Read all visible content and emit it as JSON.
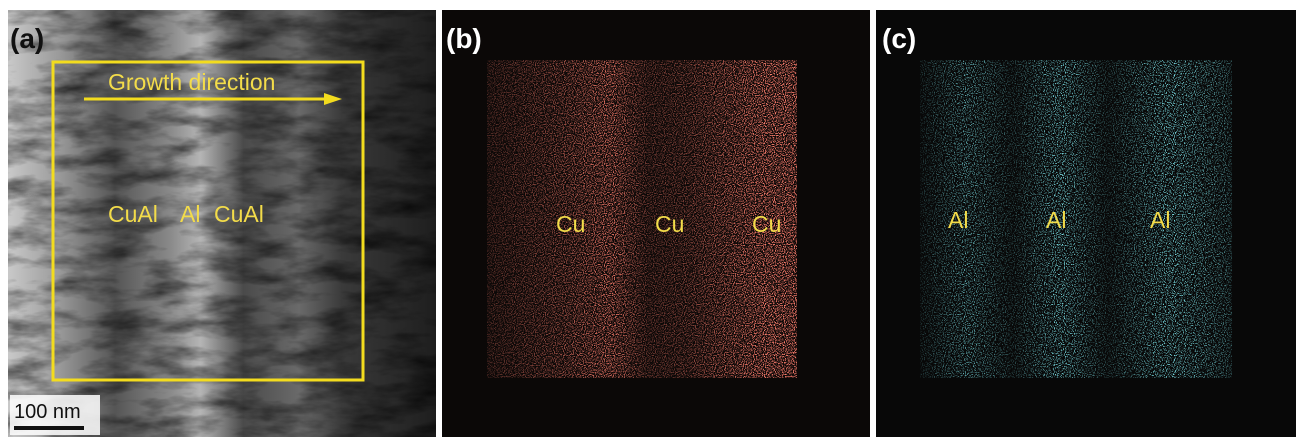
{
  "panels": [
    {
      "label": "(a)",
      "arrow_label": "Growth direction",
      "phases": [
        "CuAl",
        "Al",
        "CuAl"
      ],
      "scale_bar": "100 nm"
    },
    {
      "label": "(b)",
      "phases": [
        "Cu",
        "Cu",
        "Cu"
      ]
    },
    {
      "label": "(c)",
      "phases": [
        "Al",
        "Al",
        "Al"
      ]
    }
  ]
}
